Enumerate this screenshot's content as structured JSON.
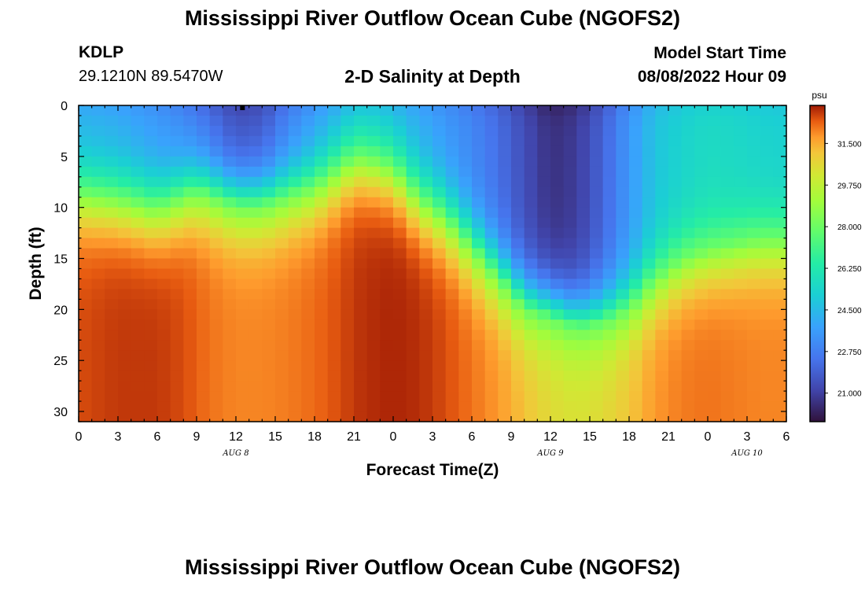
{
  "page": {
    "title": "Mississippi River Outflow Ocean Cube (NGOFS2)",
    "title_repeat": "Mississippi River Outflow Ocean Cube (NGOFS2)",
    "station_id": "KDLP",
    "station_coords": "29.1210N  89.5470W",
    "subtitle": "2-D Salinity at Depth",
    "model_start_label": "Model Start Time",
    "model_start_value": "08/08/2022 Hour 09"
  },
  "chart_data": {
    "type": "heatmap",
    "title": "2-D Salinity at Depth",
    "xlabel": "Forecast Time(Z)",
    "ylabel": "Depth (ft)",
    "x_range_hours": [
      0,
      54
    ],
    "y_range_ft": [
      0,
      31
    ],
    "y_inverted": true,
    "x_tick_labels": [
      "0",
      "3",
      "6",
      "9",
      "12",
      "15",
      "18",
      "21",
      "0",
      "3",
      "6",
      "9",
      "12",
      "15",
      "18",
      "21",
      "0",
      "3",
      "6"
    ],
    "y_tick_values": [
      0,
      5,
      10,
      15,
      20,
      25,
      30
    ],
    "y_tick_labels": [
      "0",
      "5",
      "10",
      "15",
      "20",
      "25",
      "30"
    ],
    "date_labels": [
      {
        "label": "AUG 8",
        "hour": 12
      },
      {
        "label": "AUG 9",
        "hour": 36
      },
      {
        "label": "AUG 10",
        "hour": 51
      }
    ],
    "colorbar": {
      "unit": "psu",
      "min": 19.8,
      "max": 33.1,
      "tick_labels": [
        "31.500",
        "29.750",
        "28.000",
        "26.250",
        "24.500",
        "22.750",
        "21.000"
      ],
      "tick_values": [
        31.5,
        29.75,
        28.0,
        26.25,
        24.5,
        22.75,
        21.0
      ]
    },
    "field_profile": {
      "time_hours": [
        0,
        3,
        6,
        8,
        9,
        10,
        12,
        14,
        16,
        18,
        20,
        21,
        22,
        24,
        26,
        28,
        30,
        32,
        34,
        36,
        38,
        40,
        42,
        44,
        46,
        48,
        50,
        52,
        54
      ],
      "halocline_depth_ft": [
        8.5,
        9,
        10,
        9,
        8.5,
        9,
        10,
        10,
        9,
        8,
        6,
        5,
        5,
        6,
        9,
        11,
        14,
        17,
        20,
        21,
        22,
        21.5,
        20,
        17,
        15,
        14,
        13.5,
        13,
        13
      ],
      "surface_salinity_psu": [
        24.2,
        24.0,
        23.5,
        23.0,
        22.6,
        22.2,
        21.4,
        21.6,
        22.8,
        23.6,
        24.2,
        24.5,
        24.6,
        24.4,
        24.0,
        23.5,
        23.0,
        22.3,
        21.4,
        20.6,
        20.9,
        22.0,
        23.5,
        24.8,
        25.3,
        25.6,
        25.5,
        25.3,
        25.2
      ],
      "bottom_salinity_psu": [
        32.6,
        32.8,
        32.8,
        32.6,
        32.4,
        32.2,
        32.0,
        32.0,
        32.1,
        32.3,
        32.6,
        32.8,
        32.9,
        33.0,
        32.9,
        32.6,
        32.2,
        31.8,
        31.2,
        30.6,
        30.4,
        30.6,
        31.1,
        31.8,
        32.1,
        32.2,
        32.1,
        32.0,
        32.0
      ]
    },
    "marker": {
      "hour": 12.5,
      "depth_ft": 0
    }
  }
}
